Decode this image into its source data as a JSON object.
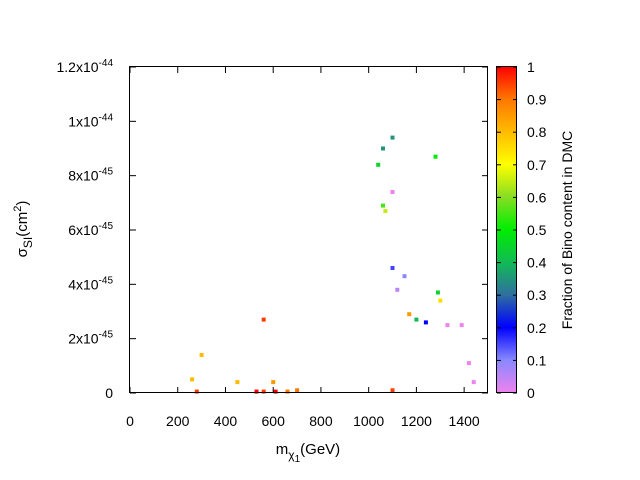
{
  "chart_data": {
    "type": "scatter",
    "xlabel_main": "m",
    "xlabel_sub": "χ",
    "xlabel_subsub": "1",
    "xlabel_unit": "(GeV)",
    "ylabel_main": "σ",
    "ylabel_sub": "SI",
    "ylabel_unit_pre": "(cm",
    "ylabel_unit_sup": "2",
    "ylabel_unit_post": ")",
    "colorbar_label": "Fraction of Bino content in DMC",
    "xlim": [
      0,
      1500
    ],
    "ylim": [
      0,
      1.2e-44
    ],
    "x_ticks": [
      {
        "value": 0,
        "label": "0"
      },
      {
        "value": 200,
        "label": "200"
      },
      {
        "value": 400,
        "label": "400"
      },
      {
        "value": 600,
        "label": "600"
      },
      {
        "value": 800,
        "label": "800"
      },
      {
        "value": 1000,
        "label": "1000"
      },
      {
        "value": 1200,
        "label": "1200"
      },
      {
        "value": 1400,
        "label": "1400"
      }
    ],
    "y_ticks": [
      {
        "value": 0,
        "mantissa": "0",
        "exponent": ""
      },
      {
        "value": 2e-45,
        "mantissa": "2x10",
        "exponent": "-45"
      },
      {
        "value": 4e-45,
        "mantissa": "4x10",
        "exponent": "-45"
      },
      {
        "value": 6e-45,
        "mantissa": "6x10",
        "exponent": "-45"
      },
      {
        "value": 8e-45,
        "mantissa": "8x10",
        "exponent": "-45"
      },
      {
        "value": 1e-44,
        "mantissa": "1x10",
        "exponent": "-44"
      },
      {
        "value": 1.2e-44,
        "mantissa": "1.2x10",
        "exponent": "-44"
      }
    ],
    "colorbar": {
      "range": [
        0,
        1
      ],
      "ticks": [
        {
          "value": 0,
          "label": "0"
        },
        {
          "value": 0.1,
          "label": "0.1"
        },
        {
          "value": 0.2,
          "label": "0.2"
        },
        {
          "value": 0.3,
          "label": "0.3"
        },
        {
          "value": 0.4,
          "label": "0.4"
        },
        {
          "value": 0.5,
          "label": "0.5"
        },
        {
          "value": 0.6,
          "label": "0.6"
        },
        {
          "value": 0.7,
          "label": "0.7"
        },
        {
          "value": 0.8,
          "label": "0.8"
        },
        {
          "value": 0.9,
          "label": "0.9"
        },
        {
          "value": 1,
          "label": "1"
        }
      ],
      "palette": [
        "#ee82ee",
        "#8888ff",
        "#0000ff",
        "#2f6f9f",
        "#11bb55",
        "#00ee00",
        "#88dd22",
        "#ffff00",
        "#ffbb00",
        "#ff7700",
        "#ff0000"
      ]
    },
    "points": [
      [
        1280,
        8.7e-45,
        0.5
      ],
      [
        1100,
        9.4e-45,
        0.35
      ],
      [
        1060,
        9e-45,
        0.35
      ],
      [
        1040,
        8.4e-45,
        0.45
      ],
      [
        1100,
        7.4e-45,
        0.0
      ],
      [
        1060,
        6.9e-45,
        0.55
      ],
      [
        1070,
        6.7e-45,
        0.65
      ],
      [
        1300,
        3.4e-45,
        0.75
      ],
      [
        1290,
        3.7e-45,
        0.45
      ],
      [
        1200,
        2.7e-45,
        0.4
      ],
      [
        1240,
        2.6e-45,
        0.2
      ],
      [
        1330,
        2.5e-45,
        0.0
      ],
      [
        1390,
        2.5e-45,
        0.0
      ],
      [
        1420,
        1.1e-45,
        0.0
      ],
      [
        1440,
        4e-46,
        0.0
      ],
      [
        1170,
        2.9e-45,
        0.85
      ],
      [
        1120,
        3.8e-45,
        0.05
      ],
      [
        1150,
        4.3e-45,
        0.1
      ],
      [
        1100,
        4.6e-45,
        0.15
      ],
      [
        280,
        5e-47,
        0.95
      ],
      [
        530,
        5e-47,
        1.0
      ],
      [
        560,
        5e-47,
        0.95
      ],
      [
        610,
        5e-47,
        1.0
      ],
      [
        660,
        5e-47,
        0.9
      ],
      [
        1100,
        1e-46,
        0.95
      ],
      [
        560,
        2.7e-45,
        0.95
      ],
      [
        450,
        4e-46,
        0.8
      ],
      [
        600,
        4e-46,
        0.85
      ],
      [
        260,
        5e-46,
        0.8
      ],
      [
        300,
        1.4e-45,
        0.8
      ],
      [
        700,
        1e-46,
        0.9
      ]
    ]
  }
}
